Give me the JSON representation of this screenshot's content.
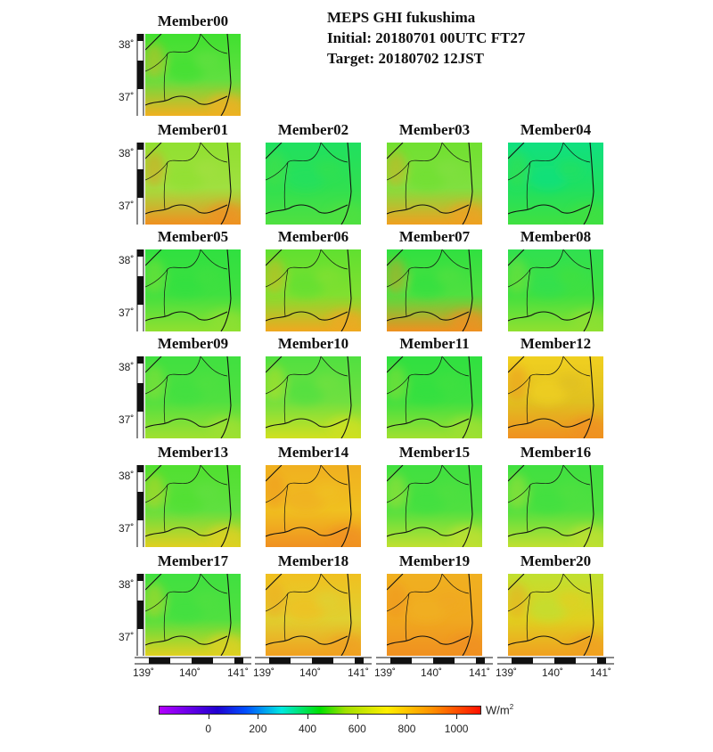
{
  "title": {
    "line1": "MEPS GHI fukushima",
    "line2": "Initial: 20180701 00UTC FT27",
    "line3": "Target: 20180702 12JST"
  },
  "lat_labels": [
    "38˚",
    "37˚"
  ],
  "lon_labels": [
    "139˚",
    "140˚",
    "141˚"
  ],
  "colorbar": {
    "unit": "W/m",
    "unit_sup": "2",
    "ticks": [
      "0",
      "200",
      "400",
      "600",
      "800",
      "1000"
    ],
    "tick_values": [
      0,
      200,
      400,
      600,
      800,
      1000
    ],
    "range": [
      -200,
      1100
    ]
  },
  "members": [
    {
      "name": "Member00",
      "colors": [
        "#40e030",
        "#60e040",
        "#f0b020"
      ]
    },
    {
      "name": "Member01",
      "colors": [
        "#90e030",
        "#a0e040",
        "#f09020"
      ]
    },
    {
      "name": "Member02",
      "colors": [
        "#20e060",
        "#30e050",
        "#50e040"
      ]
    },
    {
      "name": "Member03",
      "colors": [
        "#70e030",
        "#80e040",
        "#f0a020"
      ]
    },
    {
      "name": "Member04",
      "colors": [
        "#10e080",
        "#20e060",
        "#40e040"
      ]
    },
    {
      "name": "Member05",
      "colors": [
        "#30e040",
        "#40e040",
        "#90e030"
      ]
    },
    {
      "name": "Member06",
      "colors": [
        "#60e030",
        "#80e030",
        "#f0a820"
      ]
    },
    {
      "name": "Member07",
      "colors": [
        "#30e040",
        "#50e040",
        "#f09020"
      ]
    },
    {
      "name": "Member08",
      "colors": [
        "#30e050",
        "#40e040",
        "#90e030"
      ]
    },
    {
      "name": "Member09",
      "colors": [
        "#40e040",
        "#50e040",
        "#a0e030"
      ]
    },
    {
      "name": "Member10",
      "colors": [
        "#50e040",
        "#70e040",
        "#d0e020"
      ]
    },
    {
      "name": "Member11",
      "colors": [
        "#30e040",
        "#40e040",
        "#a0e030"
      ]
    },
    {
      "name": "Member12",
      "colors": [
        "#f0d020",
        "#e0c020",
        "#f09020"
      ]
    },
    {
      "name": "Member13",
      "colors": [
        "#50e030",
        "#60e040",
        "#e0d020"
      ]
    },
    {
      "name": "Member14",
      "colors": [
        "#f0b020",
        "#f0c020",
        "#f09020"
      ]
    },
    {
      "name": "Member15",
      "colors": [
        "#40e040",
        "#50e040",
        "#c0e030"
      ]
    },
    {
      "name": "Member16",
      "colors": [
        "#40e040",
        "#50e040",
        "#c0e030"
      ]
    },
    {
      "name": "Member17",
      "colors": [
        "#40e040",
        "#50e040",
        "#e0d020"
      ]
    },
    {
      "name": "Member18",
      "colors": [
        "#f0c020",
        "#e0d030",
        "#f0a020"
      ]
    },
    {
      "name": "Member19",
      "colors": [
        "#f0b020",
        "#f0a820",
        "#f09020"
      ]
    },
    {
      "name": "Member20",
      "colors": [
        "#c0e030",
        "#e0d020",
        "#f0a020"
      ]
    }
  ]
}
